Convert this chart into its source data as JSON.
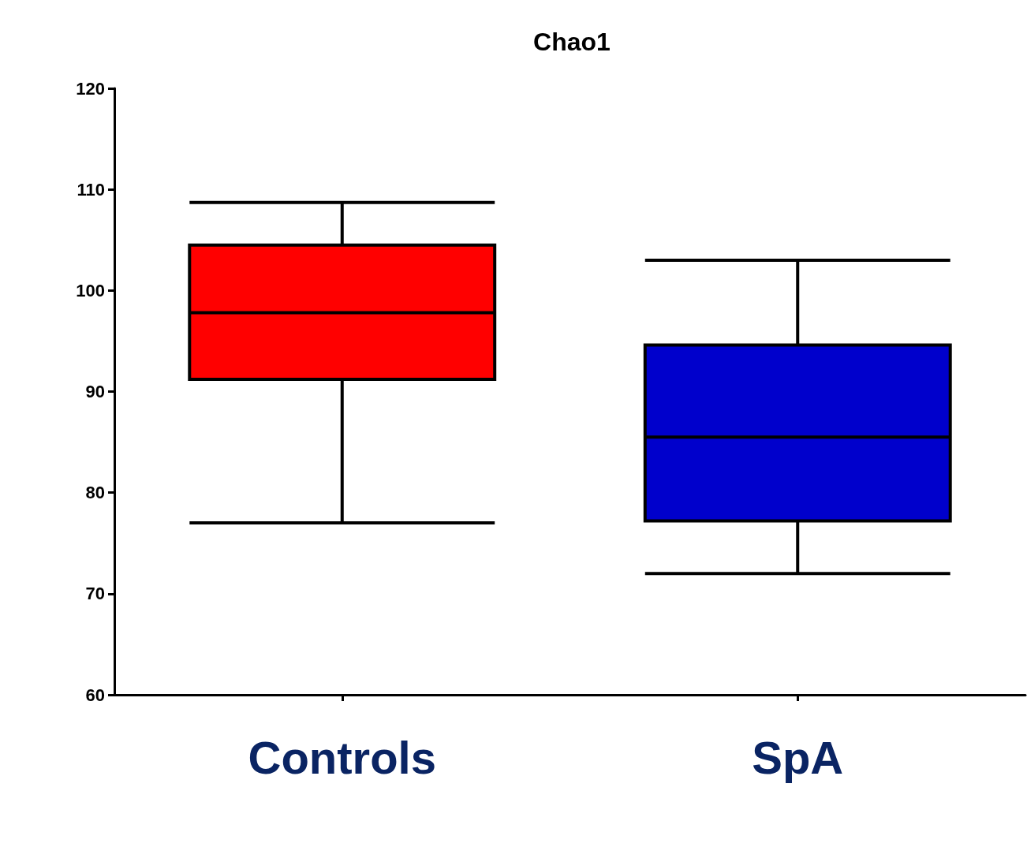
{
  "chart_data": {
    "type": "box",
    "title": "Chao1",
    "categories": [
      "Controls",
      "SpA"
    ],
    "boxes": [
      {
        "low": 77.0,
        "q1": 91.2,
        "median": 97.8,
        "q3": 104.5,
        "high": 108.7
      },
      {
        "low": 72.0,
        "q1": 77.2,
        "median": 85.5,
        "q3": 94.6,
        "high": 103.0
      }
    ],
    "colors": [
      "#ff0000",
      "#0000cc"
    ],
    "ylim": [
      60,
      120
    ],
    "yticks": [
      60,
      70,
      80,
      90,
      100,
      110,
      120
    ],
    "grid": false
  }
}
